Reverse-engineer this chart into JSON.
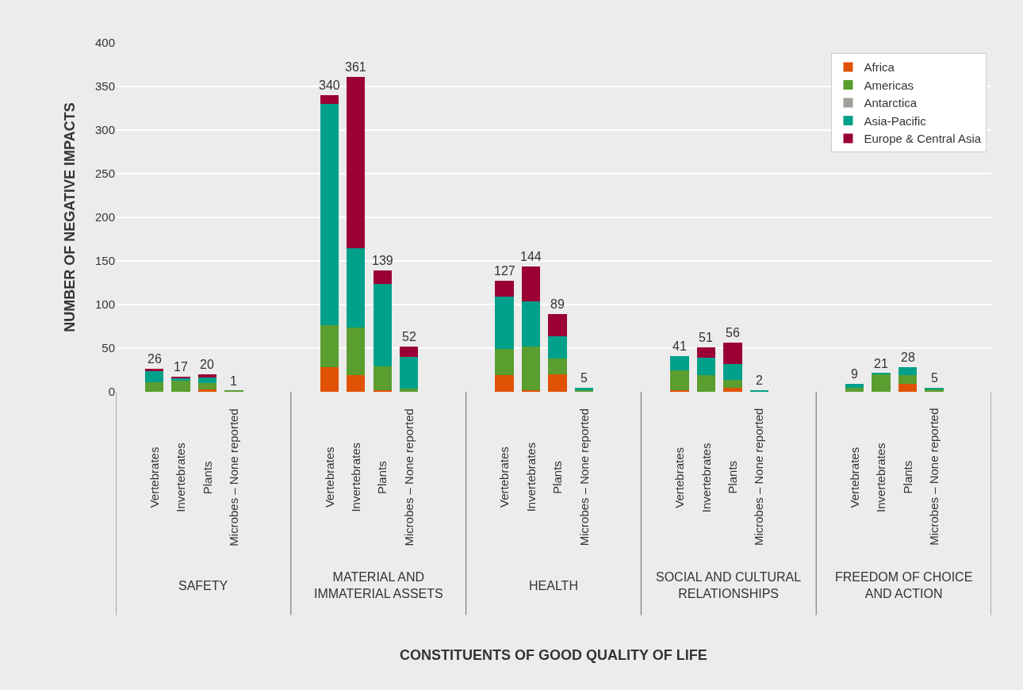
{
  "chart_data": {
    "type": "bar",
    "stacked": true,
    "ylabel": "NUMBER OF NEGATIVE IMPACTS",
    "categories": [
      "Vertebrates",
      "Invertebrates",
      "Plants",
      "Microbes – None reported",
      "Vertebrates",
      "Invertebrates",
      "Plants",
      "Microbes – None reported",
      "Vertebrates",
      "Invertebrates",
      "Plants",
      "Microbes – None reported",
      "Vertebrates",
      "Invertebrates",
      "Plants",
      "Microbes – None reported",
      "Vertebrates",
      "Invertebrates",
      "Plants",
      "Microbes – None reported"
    ],
    "annotations": [
      "SAFETY",
      "MATERIAL AND\nIMMATERIAL ASSETS",
      "HEALTH",
      "SOCIAL AND CULTURAL\nRELATIONSHIPS",
      "FREEDOM OF CHOICE\nAND ACTION",
      "CONSTITUENTS OF GOOD QUALITY OF LIFE"
    ],
    "series": [
      {
        "name": "Africa",
        "color": "#e05206",
        "values": [
          0,
          0,
          3,
          0,
          28,
          19,
          2,
          0,
          19,
          2,
          20,
          0,
          2,
          0,
          5,
          0,
          0,
          0,
          9,
          0
        ]
      },
      {
        "name": "Americas",
        "color": "#5a9e2f",
        "values": [
          11,
          13,
          7,
          1,
          48,
          55,
          27,
          4,
          30,
          50,
          18,
          2,
          23,
          19,
          9,
          0,
          5,
          20,
          10,
          3
        ]
      },
      {
        "name": "Antarctica",
        "color": "#a0a09a",
        "values": [
          0,
          0,
          0,
          0,
          0,
          0,
          0,
          0,
          0,
          0,
          0,
          0,
          0,
          0,
          0,
          0,
          0,
          0,
          0,
          0
        ]
      },
      {
        "name": "Asia-Pacific",
        "color": "#00a08a",
        "values": [
          13,
          3,
          6,
          0,
          254,
          91,
          95,
          36,
          60,
          52,
          26,
          3,
          16,
          20,
          18,
          2,
          4,
          1,
          9,
          2
        ]
      },
      {
        "name": "Europe & Central Asia",
        "color": "#9a0036",
        "values": [
          2,
          1,
          4,
          0,
          10,
          196,
          15,
          12,
          18,
          40,
          25,
          0,
          0,
          12,
          24,
          0,
          0,
          0,
          0,
          0
        ]
      }
    ],
    "totals": [
      "26",
      "17",
      "20",
      "1",
      "340",
      "361",
      "139",
      "52",
      "127",
      "144",
      "89",
      "5",
      "41",
      "51",
      "56",
      "2",
      "9",
      "21",
      "28",
      "5"
    ],
    "ylim": [
      0,
      400
    ],
    "yticks": [
      0,
      50,
      100,
      150,
      200,
      250,
      300,
      350,
      400
    ],
    "grid": "y",
    "legend": "top right"
  }
}
